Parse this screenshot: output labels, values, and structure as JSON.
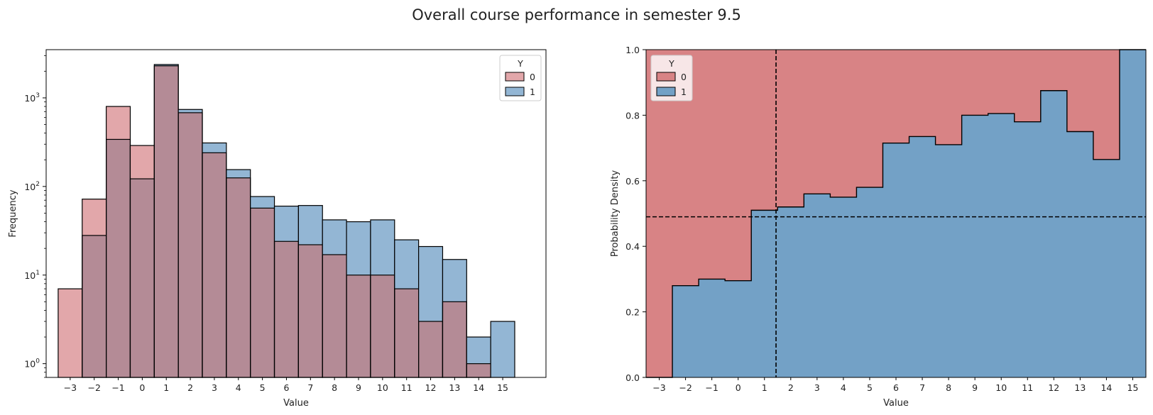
{
  "figure": {
    "title": "Overall course performance in semester 9.5"
  },
  "colors": {
    "y0_hist_fill": "#e2a7aa",
    "y1_hist_fill": "#93b6d4",
    "overlap_fill": "#b48b96",
    "y0_prob_fill": "#d88385",
    "y1_prob_fill": "#73a1c6",
    "edge": "#000000"
  },
  "chart_data": [
    {
      "type": "bar",
      "subtype": "overlaid histogram",
      "xlabel": "Value",
      "ylabel": "Frequency",
      "yscale": "log",
      "ylim": [
        0.7,
        3500
      ],
      "xlim": [
        -4.0,
        16.8
      ],
      "y_tick_labels": [
        "10^0",
        "10^1",
        "10^2",
        "10^3"
      ],
      "x_tick_labels": [
        "−3",
        "−2",
        "−1",
        "0",
        "1",
        "2",
        "3",
        "4",
        "5",
        "6",
        "7",
        "8",
        "9",
        "10",
        "11",
        "12",
        "13",
        "14",
        "15"
      ],
      "categories": [
        -3,
        -2,
        -1,
        0,
        1,
        2,
        3,
        4,
        5,
        6,
        7,
        8,
        9,
        10,
        11,
        12,
        13,
        14,
        15
      ],
      "legend": {
        "title": "Y",
        "position": "top-right",
        "entries": [
          "0",
          "1"
        ]
      },
      "series": [
        {
          "name": "0",
          "values": [
            7,
            72,
            800,
            290,
            2300,
            680,
            240,
            125,
            57,
            24,
            22,
            17,
            10,
            10,
            7,
            3,
            5,
            1,
            0
          ]
        },
        {
          "name": "1",
          "values": [
            0,
            28,
            340,
            122,
            2380,
            740,
            310,
            155,
            77,
            60,
            61,
            42,
            40,
            42,
            25,
            21,
            15,
            2,
            3
          ]
        }
      ]
    },
    {
      "type": "area",
      "subtype": "stacked step (fill) probability",
      "xlabel": "Value",
      "ylabel": "Probability Density",
      "ylim": [
        0,
        1
      ],
      "xlim": [
        -3.5,
        15.5
      ],
      "y_tick_labels": [
        "0.0",
        "0.2",
        "0.4",
        "0.6",
        "0.8",
        "1.0"
      ],
      "x_tick_labels": [
        "−3",
        "−2",
        "−1",
        "0",
        "1",
        "2",
        "3",
        "4",
        "5",
        "6",
        "7",
        "8",
        "9",
        "10",
        "11",
        "12",
        "13",
        "14",
        "15"
      ],
      "categories": [
        -3,
        -2,
        -1,
        0,
        1,
        2,
        3,
        4,
        5,
        6,
        7,
        8,
        9,
        10,
        11,
        12,
        13,
        14,
        15
      ],
      "legend": {
        "title": "Y",
        "position": "top-left",
        "entries": [
          "0",
          "1"
        ]
      },
      "series": [
        {
          "name": "1",
          "values": [
            0.0,
            0.28,
            0.3,
            0.295,
            0.51,
            0.52,
            0.56,
            0.55,
            0.58,
            0.715,
            0.735,
            0.71,
            0.8,
            0.805,
            0.78,
            0.875,
            0.75,
            0.665,
            1.0
          ]
        }
      ],
      "reference_lines": {
        "vertical_x": 1.44,
        "horizontal_y": 0.49
      }
    }
  ]
}
